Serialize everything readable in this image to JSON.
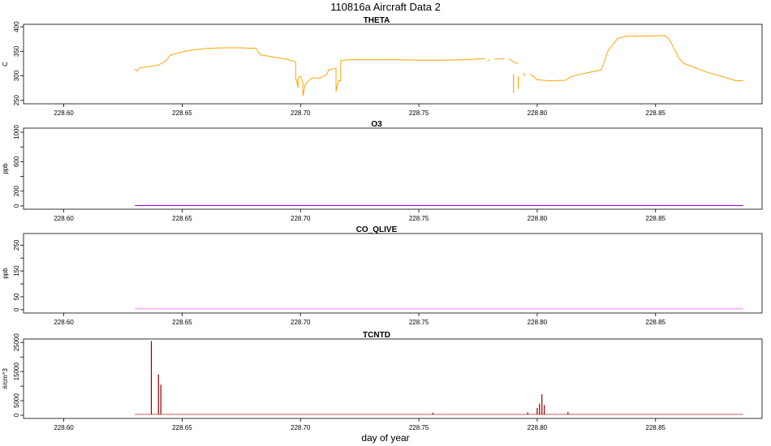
{
  "figure": {
    "title": "110816a   Aircraft Data 2",
    "xlabel": "day of year"
  },
  "chart_data": [
    {
      "type": "line",
      "title": "THETA",
      "ylabel": "C",
      "color": "#FFA500",
      "xlim": [
        228.583,
        228.895
      ],
      "xticks": [
        "228.60",
        "228.65",
        "228.70",
        "228.75",
        "228.80",
        "228.85"
      ],
      "ylim": [
        243,
        405
      ],
      "yticks": [
        250,
        300,
        350,
        400
      ],
      "series": [
        {
          "segments": [
            [
              [
                228.63,
                314
              ],
              [
                228.631,
                310
              ],
              [
                228.632,
                316
              ],
              [
                228.635,
                318
              ],
              [
                228.64,
                322
              ],
              [
                228.643,
                330
              ],
              [
                228.645,
                342
              ],
              [
                228.65,
                349
              ],
              [
                228.655,
                353
              ],
              [
                228.66,
                356
              ],
              [
                228.667,
                357
              ],
              [
                228.675,
                357
              ],
              [
                228.68,
                356
              ],
              [
                228.681,
                357
              ],
              [
                228.683,
                343
              ],
              [
                228.69,
                337
              ],
              [
                228.695,
                333
              ],
              [
                228.697,
                330
              ],
              [
                228.698,
                328
              ]
            ],
            [
              [
                228.698,
                328
              ],
              [
                228.698,
                296
              ],
              [
                228.699,
                276
              ],
              [
                228.699,
                296
              ],
              [
                228.7,
                299
              ],
              [
                228.701,
                288
              ],
              [
                228.701,
                259
              ],
              [
                228.702,
                282
              ],
              [
                228.703,
                288
              ],
              [
                228.705,
                296
              ],
              [
                228.708,
                295
              ],
              [
                228.711,
                302
              ],
              [
                228.712,
                313
              ],
              [
                228.715,
                315
              ],
              [
                228.715,
                268
              ],
              [
                228.716,
                290
              ],
              [
                228.717,
                290
              ],
              [
                228.717,
                331
              ],
              [
                228.72,
                333
              ],
              [
                228.74,
                333
              ],
              [
                228.75,
                332
              ],
              [
                228.76,
                332
              ],
              [
                228.77,
                333
              ],
              [
                228.778,
                335
              ]
            ],
            [
              [
                228.779,
                331
              ],
              [
                228.78,
                333
              ]
            ],
            [
              [
                228.782,
                334
              ],
              [
                228.786,
                335
              ]
            ],
            [
              [
                228.788,
                335
              ],
              [
                228.791,
                326
              ],
              [
                228.792,
                326
              ]
            ],
            [
              [
                228.794,
                306
              ],
              [
                228.795,
                300
              ]
            ],
            [
              [
                228.797,
                304
              ],
              [
                228.8,
                292
              ],
              [
                228.805,
                290
              ],
              [
                228.812,
                291
              ],
              [
                228.814,
                298
              ],
              [
                228.818,
                303
              ],
              [
                228.822,
                307
              ],
              [
                228.827,
                312
              ],
              [
                228.828,
                324
              ],
              [
                228.83,
                352
              ],
              [
                228.834,
                376
              ],
              [
                228.838,
                381
              ],
              [
                228.845,
                381
              ],
              [
                228.854,
                382
              ],
              [
                228.856,
                373
              ],
              [
                228.86,
                335
              ],
              [
                228.862,
                325
              ],
              [
                228.866,
                318
              ],
              [
                228.872,
                307
              ],
              [
                228.88,
                296
              ],
              [
                228.884,
                290
              ],
              [
                228.887,
                290
              ]
            ]
          ],
          "spikes": [
            {
              "x": 228.79,
              "y0": 303,
              "y1": 265
            },
            {
              "x": 228.792,
              "y0": 299,
              "y1": 274
            }
          ]
        }
      ]
    },
    {
      "type": "line",
      "title": "O3",
      "ylabel": "ppb",
      "color": "#9400D3",
      "xlim": [
        228.583,
        228.895
      ],
      "xticks": [
        "228.60",
        "228.65",
        "228.70",
        "228.75",
        "228.80",
        "228.85"
      ],
      "ylim": [
        -45,
        1055
      ],
      "yticks": [
        0,
        200,
        600,
        1000
      ],
      "yminor": [
        400,
        800
      ],
      "series": [
        {
          "segments": [
            [
              [
                228.63,
                5
              ],
              [
                228.887,
                5
              ]
            ]
          ]
        }
      ]
    },
    {
      "type": "line",
      "title": "CO_QLIVE",
      "ylabel": "ppb",
      "color": "#EE82EE",
      "xlim": [
        228.583,
        228.895
      ],
      "xticks": [
        "228.60",
        "228.65",
        "228.70",
        "228.75",
        "228.80",
        "228.85"
      ],
      "ylim": [
        -13,
        295
      ],
      "yticks": [
        0,
        50,
        150,
        250
      ],
      "yminor": [
        100,
        200
      ],
      "series": [
        {
          "segments": [
            [
              [
                228.63,
                3
              ],
              [
                228.887,
                3
              ]
            ]
          ]
        }
      ]
    },
    {
      "type": "line",
      "title": "TCNTD",
      "ylabel": "#/cm^3",
      "color": "#8B0000",
      "baseline_color": "#CD5C5C",
      "xlim": [
        228.583,
        228.895
      ],
      "xticks": [
        "228.60",
        "228.65",
        "228.70",
        "228.75",
        "228.80",
        "228.85"
      ],
      "ylim": [
        -1100,
        26200
      ],
      "yticks": [
        0,
        5000,
        15000,
        25000
      ],
      "yminor": [
        10000,
        20000
      ],
      "series": [
        {
          "baseline": [
            [
              228.63,
              300
            ],
            [
              228.887,
              300
            ]
          ],
          "spikes": [
            {
              "x": 228.637,
              "y": 25500
            },
            {
              "x": 228.64,
              "y": 14000
            },
            {
              "x": 228.641,
              "y": 10500
            },
            {
              "x": 228.756,
              "y": 900
            },
            {
              "x": 228.796,
              "y": 1000
            },
            {
              "x": 228.8,
              "y": 2500
            },
            {
              "x": 228.801,
              "y": 4000
            },
            {
              "x": 228.802,
              "y": 7200
            },
            {
              "x": 228.803,
              "y": 3500
            },
            {
              "x": 228.813,
              "y": 1100
            }
          ]
        }
      ]
    }
  ]
}
